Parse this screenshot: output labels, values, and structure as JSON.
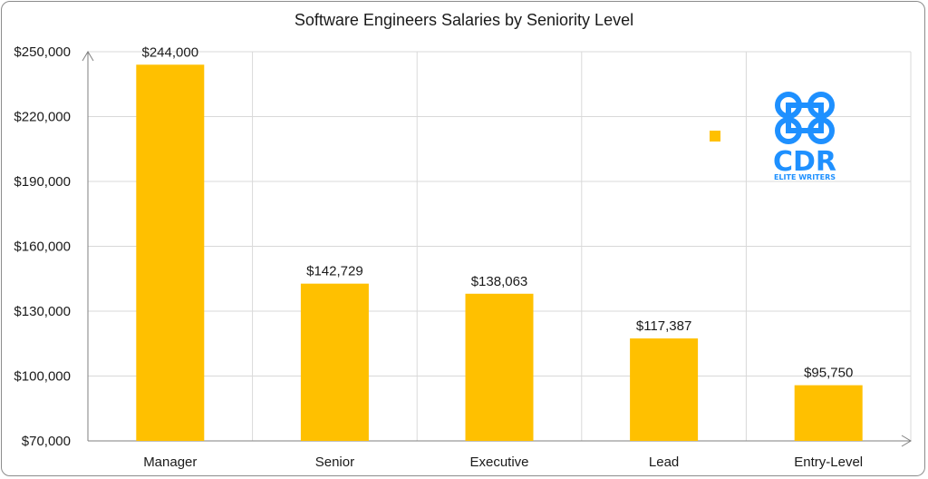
{
  "chart_data": {
    "type": "bar",
    "title": "Software Engineers Salaries by Seniority Level",
    "categories": [
      "Manager",
      "Senior",
      "Executive",
      "Lead",
      "Entry-Level"
    ],
    "values": [
      244000,
      142729,
      138063,
      117387,
      95750
    ],
    "data_labels": [
      "$244,000",
      "$142,729",
      "$138,063",
      "$117,387",
      "$95,750"
    ],
    "ylim": [
      70000,
      250000
    ],
    "yticks": [
      70000,
      100000,
      130000,
      160000,
      190000,
      220000,
      250000
    ],
    "ytick_labels": [
      "$70,000",
      "$100,000",
      "$130,000",
      "$160,000",
      "$190,000",
      "$220,000",
      "$250,000"
    ],
    "grid": true,
    "bar_color": "#FFC000",
    "xlabel": "",
    "ylabel": ""
  },
  "logo": {
    "text": "CDR",
    "subtext": "ELITE WRITERS",
    "color": "#1E90FF"
  }
}
